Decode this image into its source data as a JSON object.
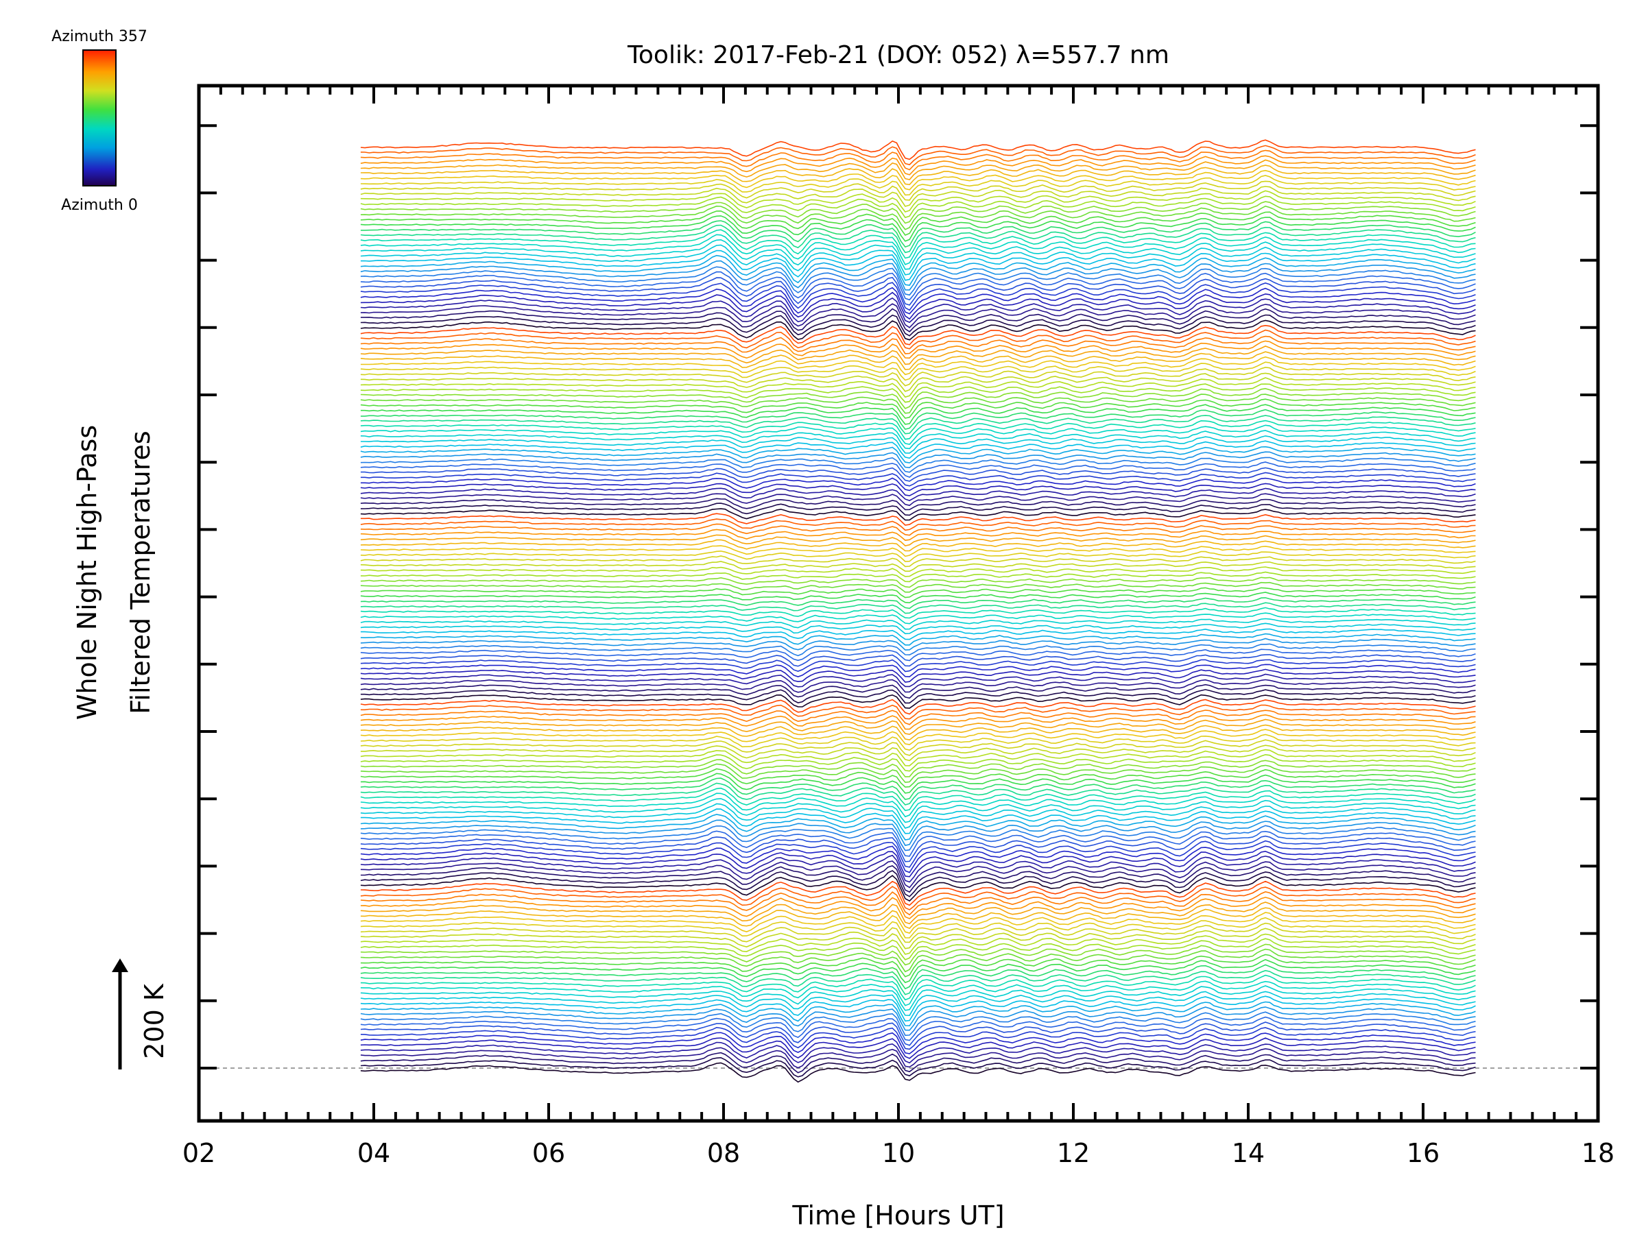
{
  "chart_data": {
    "type": "line",
    "title": "Toolik: 2017-Feb-21 (DOY: 052) λ=557.7 nm",
    "xlabel": "Time [Hours UT]",
    "ylabel_line1": "Whole Night High-Pass",
    "ylabel_line2": "Filtered Temperatures",
    "xlim": [
      2,
      18
    ],
    "x_ticks": [
      "02",
      "04",
      "06",
      "08",
      "10",
      "12",
      "14",
      "16",
      "18"
    ],
    "x_tick_values": [
      2,
      4,
      6,
      8,
      10,
      12,
      14,
      16,
      18
    ],
    "data_time_range": [
      3.85,
      16.6
    ],
    "scale_label": "200 K",
    "colorbar": {
      "top_label": "Azimuth 357",
      "bottom_label": "Azimuth 0",
      "azimuth_range": [
        0,
        357
      ],
      "colormap": "rainbow"
    },
    "series_count": 180,
    "series_description": "Stacked high-pass filtered temperature time series, one trace per azimuth bin, offset vertically; color encodes azimuth",
    "features": [
      {
        "time": 8.0,
        "description": "sharp positive peak"
      },
      {
        "time": 8.8,
        "description": "sharp dip"
      },
      {
        "time": 10.1,
        "description": "deep narrow dip"
      },
      {
        "time": 13.3,
        "description": "dip"
      },
      {
        "time": 14.2,
        "description": "peak"
      },
      {
        "time": 15.5,
        "description": "broad hump"
      }
    ]
  },
  "colors": {
    "frame": "#000000",
    "baseline": "#a0a0a0",
    "background": "#ffffff"
  }
}
